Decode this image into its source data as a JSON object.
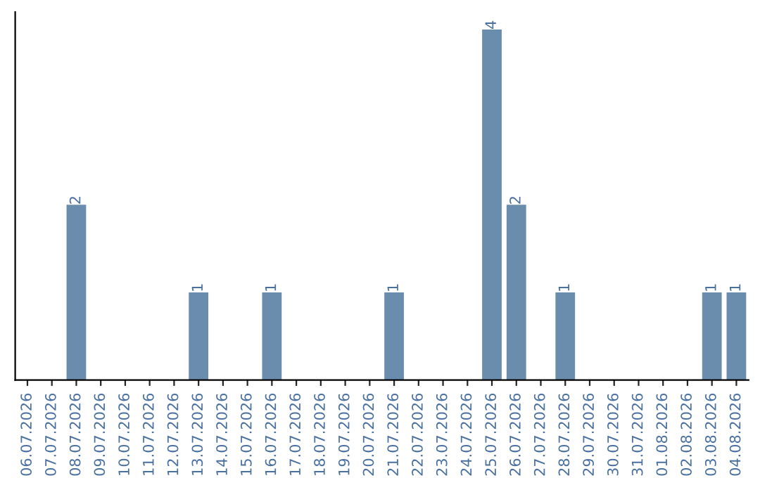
{
  "chart_data": {
    "type": "bar",
    "categories": [
      "06.07.2026",
      "07.07.2026",
      "08.07.2026",
      "09.07.2026",
      "10.07.2026",
      "11.07.2026",
      "12.07.2026",
      "13.07.2026",
      "14.07.2026",
      "15.07.2026",
      "16.07.2026",
      "17.07.2026",
      "18.07.2026",
      "19.07.2026",
      "20.07.2026",
      "21.07.2026",
      "22.07.2026",
      "23.07.2026",
      "24.07.2026",
      "25.07.2026",
      "26.07.2026",
      "27.07.2026",
      "28.07.2026",
      "29.07.2026",
      "30.07.2026",
      "31.07.2026",
      "01.08.2026",
      "02.08.2026",
      "03.08.2026",
      "04.08.2026"
    ],
    "values": [
      null,
      null,
      2,
      null,
      null,
      null,
      null,
      1,
      null,
      null,
      1,
      null,
      null,
      null,
      null,
      1,
      null,
      null,
      null,
      4,
      2,
      null,
      1,
      null,
      null,
      null,
      null,
      null,
      1,
      1
    ],
    "value_labels": [
      null,
      null,
      "2",
      null,
      null,
      null,
      null,
      "1",
      null,
      null,
      "1",
      null,
      null,
      null,
      null,
      "1",
      null,
      null,
      null,
      "4",
      "2",
      null,
      "1",
      null,
      null,
      null,
      null,
      null,
      "1",
      "1"
    ],
    "color": "#6a8cad",
    "tick_labels": "x",
    "grid": false,
    "legend": false
  }
}
